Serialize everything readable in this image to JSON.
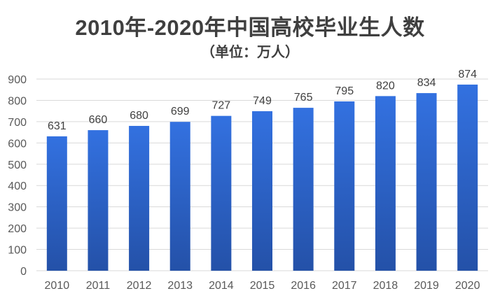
{
  "chart_data": {
    "type": "bar",
    "title": "2010年-2020年中国高校毕业生人数",
    "subtitle": "（单位：万人）",
    "xlabel": "",
    "ylabel": "",
    "categories": [
      "2010",
      "2011",
      "2012",
      "2013",
      "2014",
      "2015",
      "2016",
      "2017",
      "2018",
      "2019",
      "2020"
    ],
    "values": [
      631,
      660,
      680,
      699,
      727,
      749,
      765,
      795,
      820,
      834,
      874
    ],
    "ylim": [
      0,
      900
    ],
    "yticks": [
      0,
      100,
      200,
      300,
      400,
      500,
      600,
      700,
      800,
      900
    ],
    "grid": true,
    "legend": "none",
    "bar_color_top": "#3371e0",
    "bar_color_bottom": "#2451a8",
    "grid_color": "#d9d9d9"
  }
}
